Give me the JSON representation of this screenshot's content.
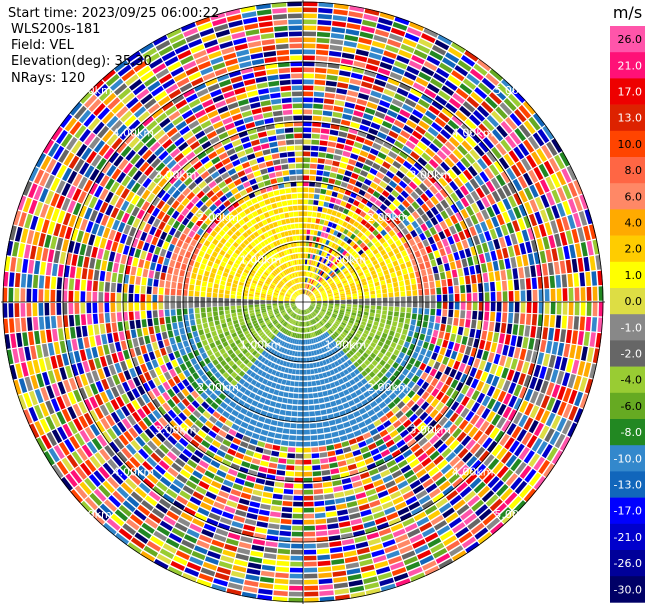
{
  "header": {
    "start_time": "Start time: 2023/09/25 06:00:22",
    "instrument": "WLS200s-181",
    "field": "Field: VEL",
    "elevation": "Elevation(deg): 35.30",
    "nrays": "NRays: 120"
  },
  "chart_data": {
    "type": "heatmap",
    "subtype": "ppi-polar",
    "range_rings": [
      {
        "label": "1.00km",
        "rings": "1.00km",
        "pos": "inner"
      },
      {
        "label": "2.00km"
      },
      {
        "label": "3.00km"
      },
      {
        "label": "4.00km"
      },
      {
        "label": "5.00km"
      }
    ],
    "ring_label_text": [
      "1.00km",
      "2.00km",
      "3.00km",
      "4.00km",
      "5.00km"
    ],
    "colorbar": {
      "unit": "m/s",
      "ticks": [
        "26.0",
        "21.0",
        "17.0",
        "13.0",
        "10.0",
        "8.0",
        "6.0",
        "4.0",
        "2.0",
        "1.0",
        "0.0",
        "-1.0",
        "-2.0",
        "-4.0",
        "-6.0",
        "-8.0",
        "-10.0",
        "-13.0",
        "-17.0",
        "-21.0",
        "-26.0",
        "-30.0"
      ],
      "colors": [
        "#ff55aa",
        "#ff1177",
        "#ee0000",
        "#dd2200",
        "#ff4400",
        "#ff6644",
        "#ff8866",
        "#ffaa00",
        "#ffcc00",
        "#ffff00",
        "#dddd44",
        "#888888",
        "#666666",
        "#99cc33",
        "#66aa22",
        "#228822",
        "#3388cc",
        "#1166bb",
        "#0000ff",
        "#0000cc",
        "#000099",
        "#000066"
      ]
    },
    "nrays": 120,
    "velocity_pattern": {
      "near_field": "north positive (orange/yellow), south negative (green/blue)",
      "far_field": "noise"
    }
  }
}
